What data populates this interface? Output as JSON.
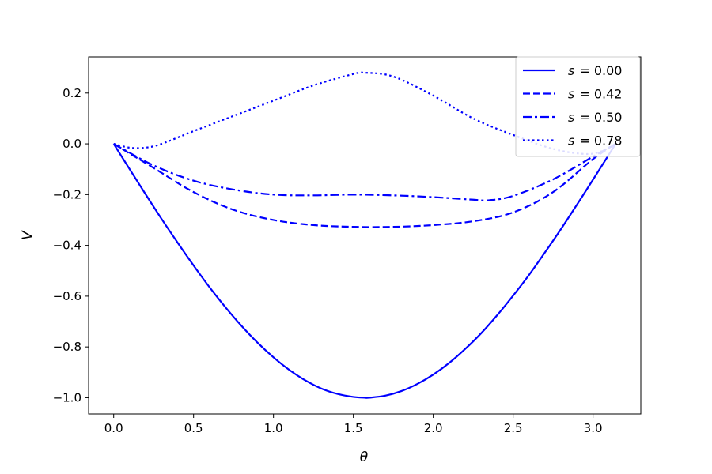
{
  "chart_data": {
    "type": "line",
    "title": "",
    "xlabel": "θ",
    "ylabel": "V",
    "xlim": [
      -0.157,
      3.299
    ],
    "ylim": [
      -1.064,
      0.3425
    ],
    "xticks": [
      0.0,
      0.5,
      1.0,
      1.5,
      2.0,
      2.5,
      3.0
    ],
    "xtick_labels": [
      "0.0",
      "0.5",
      "1.0",
      "1.5",
      "2.0",
      "2.5",
      "3.0"
    ],
    "yticks": [
      0.2,
      0.0,
      -0.2,
      -0.4,
      -0.6,
      -0.8,
      -1.0
    ],
    "ytick_labels": [
      "0.2",
      "0.0",
      "−0.2",
      "−0.4",
      "−0.6",
      "−0.8",
      "−1.0"
    ],
    "grid": false,
    "legend_position": "top-right",
    "color": "#0000ff",
    "series": [
      {
        "name": "s = 0.00",
        "legend_var": "s",
        "legend_value": "= 0.00",
        "style": "solid",
        "x": [
          0.0,
          0.1,
          0.2,
          0.3,
          0.4,
          0.5,
          0.6,
          0.7,
          0.8,
          0.9,
          1.0,
          1.1,
          1.2,
          1.3,
          1.4,
          1.5,
          1.5708,
          1.6,
          1.7,
          1.8,
          1.9,
          2.0,
          2.1,
          2.2,
          2.3,
          2.4,
          2.5,
          2.6,
          2.7,
          2.8,
          2.9,
          3.0,
          3.1416
        ],
        "y": [
          0.0,
          -0.1,
          -0.199,
          -0.296,
          -0.389,
          -0.479,
          -0.565,
          -0.644,
          -0.717,
          -0.783,
          -0.841,
          -0.891,
          -0.932,
          -0.964,
          -0.985,
          -0.997,
          -1.0,
          -1.0,
          -0.992,
          -0.974,
          -0.946,
          -0.909,
          -0.863,
          -0.808,
          -0.746,
          -0.675,
          -0.598,
          -0.516,
          -0.427,
          -0.335,
          -0.239,
          -0.141,
          0.0
        ]
      },
      {
        "name": "s = 0.42",
        "legend_var": "s",
        "legend_value": "= 0.42",
        "style": "dashed",
        "x": [
          0.0,
          0.25,
          0.5,
          0.75,
          1.0,
          1.25,
          1.5,
          1.75,
          2.0,
          2.25,
          2.5,
          2.75,
          3.0,
          3.1416
        ],
        "y": [
          0.0,
          -0.095,
          -0.19,
          -0.26,
          -0.3,
          -0.32,
          -0.327,
          -0.327,
          -0.32,
          -0.305,
          -0.27,
          -0.19,
          -0.06,
          0.0
        ]
      },
      {
        "name": "s = 0.50",
        "legend_var": "s",
        "legend_value": "= 0.50",
        "style": "dashdot",
        "x": [
          0.0,
          0.25,
          0.5,
          0.75,
          1.0,
          1.25,
          1.5,
          1.75,
          2.0,
          2.25,
          2.35,
          2.5,
          2.75,
          3.0,
          3.1416
        ],
        "y": [
          0.0,
          -0.085,
          -0.145,
          -0.18,
          -0.2,
          -0.203,
          -0.2,
          -0.203,
          -0.21,
          -0.22,
          -0.222,
          -0.205,
          -0.14,
          -0.05,
          0.0
        ]
      },
      {
        "name": "s = 0.78",
        "legend_var": "s",
        "legend_value": "= 0.78",
        "style": "dotted",
        "x": [
          0.0,
          0.1,
          0.2,
          0.3,
          0.5,
          0.75,
          1.0,
          1.25,
          1.5,
          1.5708,
          1.75,
          2.0,
          2.25,
          2.5,
          2.75,
          2.95,
          3.05,
          3.1416
        ],
        "y": [
          0.0,
          -0.015,
          -0.015,
          0.0,
          0.05,
          0.11,
          0.17,
          0.23,
          0.275,
          0.28,
          0.265,
          0.19,
          0.1,
          0.035,
          -0.02,
          -0.04,
          -0.03,
          0.0
        ]
      }
    ]
  }
}
